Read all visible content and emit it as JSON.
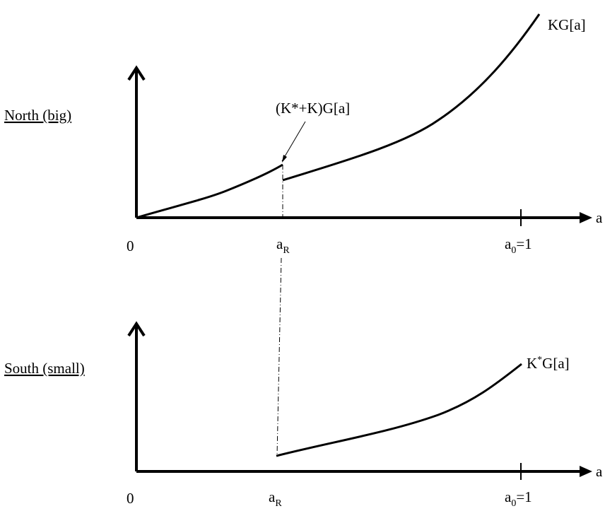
{
  "north": {
    "label": "North (big)",
    "origin_label": "0",
    "x_axis_label": "a",
    "ar_main": "a",
    "ar_sub": "R",
    "a0_main": "a",
    "a0_sub": "0",
    "a0_suffix": "=1",
    "curve_label_upper": "KG[a]",
    "curve_label_lower": "(K*+K)G[a]"
  },
  "south": {
    "label": "South (small)",
    "origin_label": "0",
    "x_axis_label": "a",
    "ar_main": "a",
    "ar_sub": "R",
    "a0_main": "a",
    "a0_sub": "0",
    "a0_suffix": "=1",
    "curve_label_main": "K",
    "curve_label_sup": "*",
    "curve_label_rest": "G[a]"
  },
  "colors": {
    "ink": "#000000"
  }
}
